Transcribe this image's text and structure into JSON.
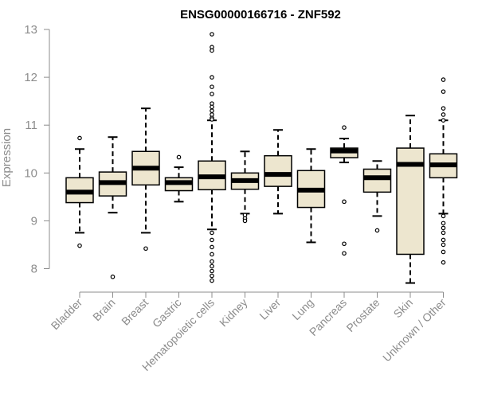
{
  "chart_data": {
    "type": "box",
    "title": "ENSG00000166716 - ZNF592",
    "ylabel": "Expression",
    "xlabel": "",
    "ylim": [
      7.5,
      13.0
    ],
    "yticks": [
      8,
      9,
      10,
      11,
      12,
      13
    ],
    "colors": {
      "box_fill": "#ede6cf",
      "stroke": "#000000",
      "axis": "#8c8c8c"
    },
    "categories": [
      "Bladder",
      "Brain",
      "Breast",
      "Gastric",
      "Hematopoietic cells",
      "Kidney",
      "Liver",
      "Lung",
      "Pancreas",
      "Prostate",
      "Skin",
      "Unknown / Other"
    ],
    "boxes": [
      {
        "name": "Bladder",
        "whisker_low": 8.75,
        "q1": 9.38,
        "median": 9.6,
        "q3": 9.9,
        "whisker_high": 10.5,
        "outliers": [
          10.73,
          8.48
        ]
      },
      {
        "name": "Brain",
        "whisker_low": 9.17,
        "q1": 9.52,
        "median": 9.8,
        "q3": 10.02,
        "whisker_high": 10.75,
        "outliers": [
          7.83
        ]
      },
      {
        "name": "Breast",
        "whisker_low": 8.75,
        "q1": 9.75,
        "median": 10.1,
        "q3": 10.45,
        "whisker_high": 11.35,
        "outliers": [
          8.42
        ]
      },
      {
        "name": "Gastric",
        "whisker_low": 9.4,
        "q1": 9.63,
        "median": 9.8,
        "q3": 9.9,
        "whisker_high": 10.12,
        "outliers": [
          10.33
        ]
      },
      {
        "name": "Hematopoietic cells",
        "whisker_low": 8.82,
        "q1": 9.65,
        "median": 9.92,
        "q3": 10.25,
        "whisker_high": 11.1,
        "outliers": [
          12.9,
          12.63,
          12.56,
          12.0,
          11.8,
          11.65,
          11.45,
          11.38,
          11.3,
          11.22,
          11.15,
          11.12,
          8.75,
          8.6,
          8.45,
          8.3,
          8.15,
          8.05,
          7.95,
          7.85,
          7.75
        ]
      },
      {
        "name": "Kidney",
        "whisker_low": 9.15,
        "q1": 9.66,
        "median": 9.84,
        "q3": 10.0,
        "whisker_high": 10.45,
        "outliers": [
          9.12,
          9.05,
          9.0
        ]
      },
      {
        "name": "Liver",
        "whisker_low": 9.15,
        "q1": 9.72,
        "median": 9.97,
        "q3": 10.36,
        "whisker_high": 10.9,
        "outliers": []
      },
      {
        "name": "Lung",
        "whisker_low": 8.55,
        "q1": 9.28,
        "median": 9.64,
        "q3": 10.05,
        "whisker_high": 10.5,
        "outliers": []
      },
      {
        "name": "Pancreas",
        "whisker_low": 10.22,
        "q1": 10.32,
        "median": 10.46,
        "q3": 10.52,
        "whisker_high": 10.72,
        "outliers": [
          10.95,
          9.4,
          8.52,
          8.32
        ]
      },
      {
        "name": "Prostate",
        "whisker_low": 9.1,
        "q1": 9.6,
        "median": 9.9,
        "q3": 10.08,
        "whisker_high": 10.25,
        "outliers": [
          8.8
        ]
      },
      {
        "name": "Skin",
        "whisker_low": 7.7,
        "q1": 8.3,
        "median": 10.18,
        "q3": 10.52,
        "whisker_high": 11.2,
        "outliers": []
      },
      {
        "name": "Unknown / Other",
        "whisker_low": 9.15,
        "q1": 9.9,
        "median": 10.17,
        "q3": 10.4,
        "whisker_high": 11.1,
        "outliers": [
          11.95,
          11.7,
          11.35,
          11.22,
          11.1,
          9.1,
          8.95,
          8.85,
          8.75,
          8.6,
          8.5,
          8.35,
          8.13
        ]
      }
    ]
  }
}
